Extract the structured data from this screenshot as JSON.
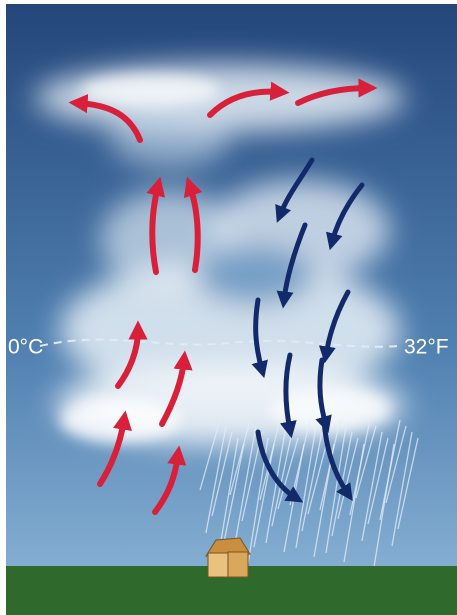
{
  "freezing_level": {
    "left_label": "0°C",
    "right_label": "32°F"
  }
}
